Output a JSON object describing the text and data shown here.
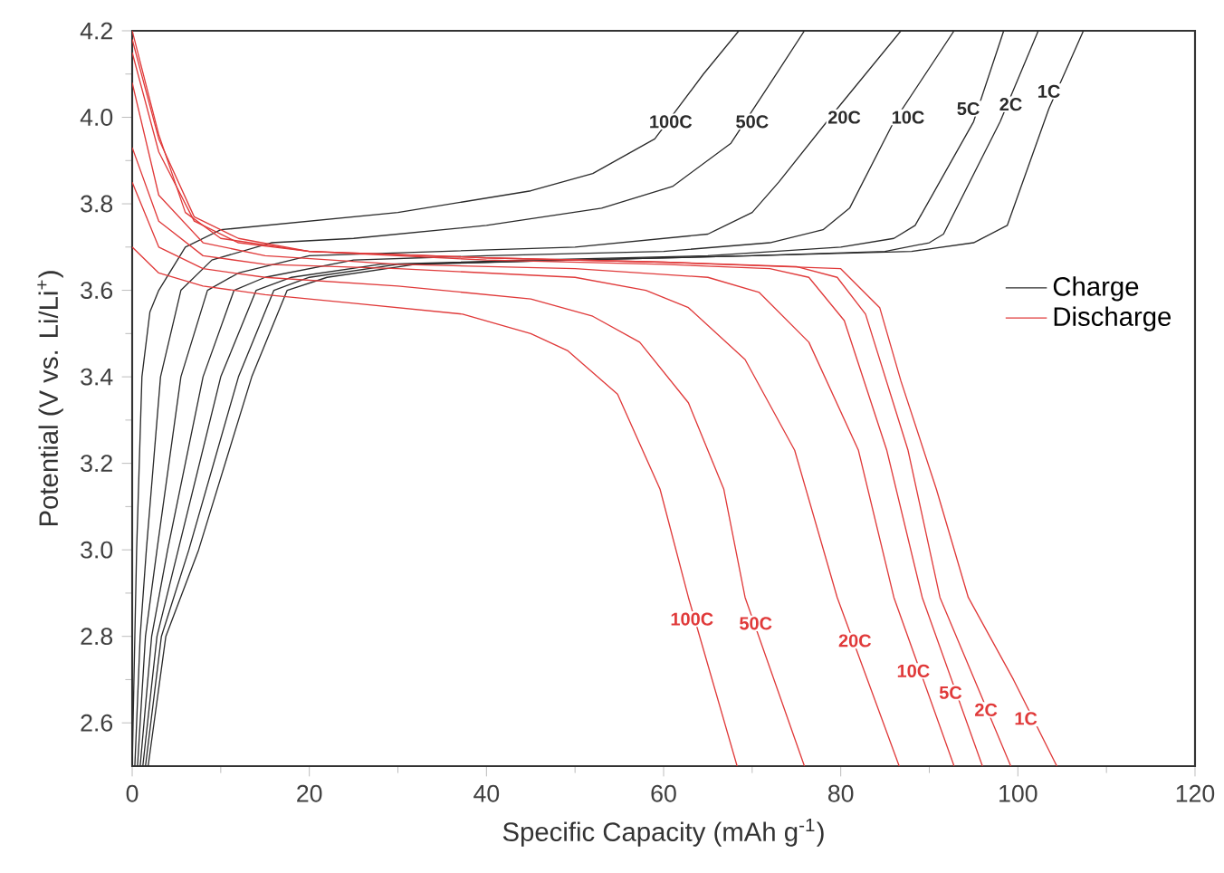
{
  "chart_data": {
    "type": "line",
    "xlabel": "Specific Capacity (mAh g$^{-1}$)",
    "ylabel": "Potential (V vs. Li/Li$^{+}$)",
    "xlim": [
      0,
      120
    ],
    "xticks": [
      0,
      20,
      40,
      60,
      80,
      100,
      120
    ],
    "ylim": [
      2.5,
      4.2
    ],
    "yticks": [
      {
        "value": 2.6,
        "label": "2.6"
      },
      {
        "value": 2.8,
        "label": "2.8"
      },
      {
        "value": 3,
        "label": "3.0"
      },
      {
        "value": 3.2,
        "label": "3.2"
      },
      {
        "value": 3.4,
        "label": "3.4"
      },
      {
        "value": 3.6,
        "label": "3.6"
      },
      {
        "value": 3.8,
        "label": "3.8"
      },
      {
        "value": 4,
        "label": "4.0"
      },
      {
        "value": 4.2,
        "label": "4.2"
      }
    ],
    "grid": false,
    "legend": "right",
    "marker": "none",
    "line_style": "solid",
    "series": [
      {
        "name": "Charge",
        "color": "#2b2b2b",
        "x": [
          0,
          0.3,
          0.5,
          1.1,
          2,
          3,
          6,
          10,
          20,
          30,
          45,
          52,
          59,
          64.5,
          68.5
        ],
        "values": [
          2.5,
          2.8,
          3.0,
          3.4,
          3.55,
          3.6,
          3.7,
          3.74,
          3.76,
          3.78,
          3.83,
          3.87,
          3.95,
          4.1,
          4.2
        ]
      },
      {
        "color": "#2b2b2b",
        "x": [
          0.3,
          0.9,
          1.6,
          3.2,
          5.5,
          9,
          15.7,
          25,
          40,
          53,
          61,
          67.6,
          72.4,
          75.9
        ],
        "values": [
          2.5,
          2.8,
          3.0,
          3.4,
          3.6,
          3.67,
          3.71,
          3.72,
          3.75,
          3.79,
          3.84,
          3.94,
          4.09,
          4.2
        ]
      },
      {
        "color": "#2b2b2b",
        "x": [
          0.6,
          1.5,
          2.8,
          5.5,
          8.5,
          12,
          20,
          35,
          50,
          65,
          70,
          73,
          79.6,
          86.8
        ],
        "values": [
          2.5,
          2.8,
          3.0,
          3.4,
          3.6,
          3.64,
          3.68,
          3.69,
          3.7,
          3.73,
          3.78,
          3.85,
          4.02,
          4.2
        ]
      },
      {
        "color": "#2b2b2b",
        "x": [
          0.9,
          2.2,
          4,
          8,
          11.5,
          15,
          25,
          40,
          60,
          72,
          78,
          81,
          86,
          92.8
        ],
        "values": [
          2.5,
          2.8,
          3.0,
          3.4,
          3.6,
          3.63,
          3.67,
          3.68,
          3.69,
          3.71,
          3.74,
          3.79,
          3.99,
          4.2
        ]
      },
      {
        "color": "#2b2b2b",
        "x": [
          1.2,
          2.8,
          5.2,
          10,
          14,
          18,
          28,
          45,
          65,
          80,
          86,
          88.4,
          95,
          98.4
        ],
        "values": [
          2.5,
          2.8,
          3.0,
          3.4,
          3.6,
          3.63,
          3.66,
          3.67,
          3.68,
          3.7,
          3.72,
          3.75,
          3.99,
          4.2
        ]
      },
      {
        "color": "#2b2b2b",
        "x": [
          1.5,
          3.3,
          6.4,
          12,
          16,
          20,
          30,
          50,
          70,
          85,
          90,
          91.6,
          98,
          102.3
        ],
        "values": [
          2.5,
          2.8,
          3.0,
          3.4,
          3.6,
          3.63,
          3.66,
          3.67,
          3.68,
          3.69,
          3.71,
          3.73,
          3.99,
          4.2
        ]
      },
      {
        "color": "#2b2b2b",
        "x": [
          1.8,
          3.8,
          7.5,
          13.5,
          17.5,
          22,
          32,
          50,
          70,
          88,
          95,
          98.8,
          103.5,
          107.4
        ],
        "values": [
          2.5,
          2.8,
          3.0,
          3.4,
          3.6,
          3.63,
          3.66,
          3.67,
          3.68,
          3.69,
          3.71,
          3.75,
          4.02,
          4.2
        ]
      },
      {
        "name": "Discharge",
        "color": "#e03a3a",
        "x": [
          0,
          3,
          8,
          15,
          25,
          37.3,
          45,
          49.2,
          54.8,
          59.6,
          62.8,
          68.3
        ],
        "values": [
          3.7,
          3.64,
          3.61,
          3.59,
          3.57,
          3.545,
          3.5,
          3.46,
          3.36,
          3.14,
          2.89,
          2.5
        ]
      },
      {
        "color": "#e03a3a",
        "x": [
          0,
          3,
          8,
          15,
          30,
          45,
          52,
          57.3,
          62.8,
          66.8,
          69.2,
          75.9
        ],
        "values": [
          3.85,
          3.7,
          3.65,
          3.63,
          3.61,
          3.58,
          3.54,
          3.48,
          3.34,
          3.14,
          2.89,
          2.5
        ]
      },
      {
        "color": "#e03a3a",
        "x": [
          0,
          3,
          8,
          15,
          30,
          50,
          58,
          62.8,
          69.2,
          74.8,
          79.6,
          86.6
        ],
        "values": [
          3.93,
          3.76,
          3.68,
          3.66,
          3.65,
          3.63,
          3.6,
          3.56,
          3.44,
          3.23,
          2.89,
          2.5
        ]
      },
      {
        "color": "#e03a3a",
        "x": [
          0,
          3,
          8,
          15,
          30,
          50,
          65,
          70.8,
          76.4,
          82,
          86,
          92.8
        ],
        "values": [
          4.08,
          3.82,
          3.71,
          3.68,
          3.66,
          3.65,
          3.63,
          3.595,
          3.48,
          3.23,
          2.89,
          2.5
        ]
      },
      {
        "color": "#e03a3a",
        "x": [
          0,
          3,
          7,
          12,
          20,
          40,
          60,
          72,
          76.4,
          80.4,
          85.2,
          89.2,
          96
        ],
        "values": [
          4.15,
          3.92,
          3.76,
          3.71,
          3.69,
          3.67,
          3.66,
          3.65,
          3.63,
          3.53,
          3.23,
          2.89,
          2.5
        ]
      },
      {
        "color": "#e03a3a",
        "x": [
          0,
          3,
          7,
          12,
          20,
          40,
          60,
          75,
          79.6,
          82.8,
          87.6,
          91.2,
          99.2
        ],
        "values": [
          4.18,
          3.95,
          3.77,
          3.72,
          3.69,
          3.675,
          3.665,
          3.655,
          3.63,
          3.545,
          3.23,
          2.89,
          2.5
        ]
      },
      {
        "color": "#e03a3a",
        "x": [
          0,
          3,
          6,
          10,
          20,
          40,
          60,
          80,
          84.4,
          86.8,
          90.8,
          94.4,
          99.5,
          104.4
        ],
        "values": [
          4.2,
          3.96,
          3.78,
          3.72,
          3.69,
          3.675,
          3.665,
          3.65,
          3.56,
          3.39,
          3.14,
          2.89,
          2.7,
          2.5
        ]
      }
    ],
    "annotations": [
      {
        "text": "100C",
        "x": 60.8,
        "y": 3.99
      },
      {
        "text": "50C",
        "x": 70,
        "y": 3.99
      },
      {
        "text": "20C",
        "x": 80.4,
        "y": 4.0
      },
      {
        "text": "10C",
        "x": 87.6,
        "y": 4.0
      },
      {
        "text": "5C",
        "x": 94.4,
        "y": 4.02
      },
      {
        "text": "2C",
        "x": 99.2,
        "y": 4.03
      },
      {
        "text": "1C",
        "x": 103.5,
        "y": 4.06
      },
      {
        "text": "100C",
        "x": 63.2,
        "y": 2.84
      },
      {
        "text": "50C",
        "x": 70.4,
        "y": 2.83
      },
      {
        "text": "20C",
        "x": 81.6,
        "y": 2.79
      },
      {
        "text": "10C",
        "x": 88.2,
        "y": 2.72
      },
      {
        "text": "5C",
        "x": 92.4,
        "y": 2.67
      },
      {
        "text": "2C",
        "x": 96.4,
        "y": 2.63
      },
      {
        "text": "1C",
        "x": 100.9,
        "y": 2.61
      }
    ]
  }
}
